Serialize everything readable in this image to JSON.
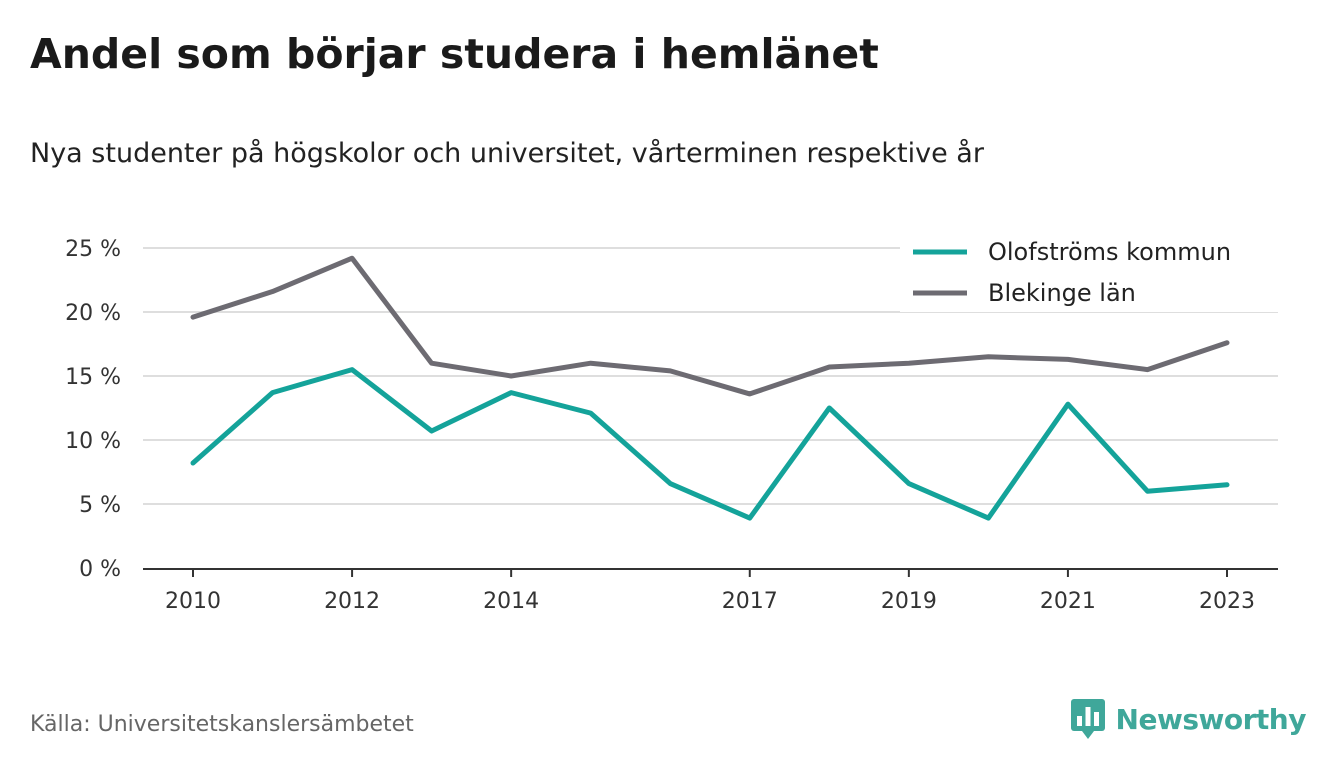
{
  "header": {
    "title": "Andel som börjar studera i hemlänet",
    "subtitle": "Nya studenter på högskolor och universitet, vårterminen respektive år"
  },
  "footer": {
    "source": "Källa: Universitetskanslersämbetet",
    "brand": "Newsworthy",
    "brand_icon": "newsworthy-logo-icon"
  },
  "colors": {
    "olofstrom": "#14a39a",
    "blekinge": "#6d6b72",
    "grid": "#dedede",
    "axis": "#333333",
    "brand": "#3fa79a"
  },
  "chart_data": {
    "type": "line",
    "x": [
      2010,
      2011,
      2012,
      2013,
      2014,
      2015,
      2016,
      2017,
      2018,
      2019,
      2020,
      2021,
      2022,
      2023
    ],
    "xticks": [
      "2010",
      "2012",
      "2014",
      "2017",
      "2019",
      "2021",
      "2023"
    ],
    "yticks": [
      "0 %",
      "5 %",
      "10 %",
      "15 %",
      "20 %",
      "25 %"
    ],
    "ylim": [
      0,
      25
    ],
    "grid": true,
    "legend_position": "top-right",
    "series": [
      {
        "name": "Olofströms kommun",
        "color": "#14a39a",
        "values": [
          8.2,
          13.7,
          15.5,
          10.7,
          13.7,
          12.1,
          6.6,
          3.9,
          12.5,
          6.6,
          3.9,
          12.8,
          6.0,
          6.5
        ]
      },
      {
        "name": "Blekinge län",
        "color": "#6d6b72",
        "values": [
          19.6,
          21.6,
          24.2,
          16.0,
          15.0,
          16.0,
          15.4,
          13.6,
          15.7,
          16.0,
          16.5,
          16.3,
          15.5,
          17.6
        ]
      }
    ]
  }
}
